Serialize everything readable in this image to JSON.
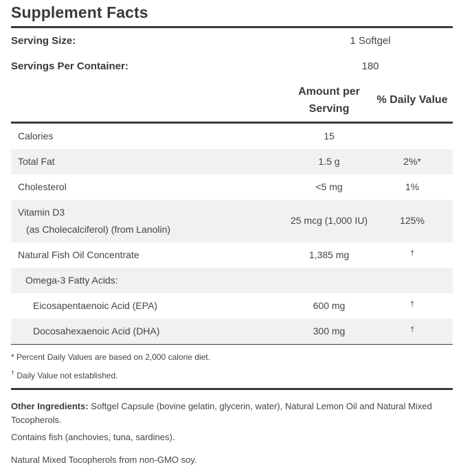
{
  "title": "Supplement Facts",
  "serving": {
    "size_label": "Serving Size:",
    "size_value": "1 Softgel",
    "per_container_label": "Servings Per Container:",
    "per_container_value": "180"
  },
  "columns": {
    "amount_line1": "Amount per",
    "amount_line2": "Serving",
    "daily_value": "% Daily Value"
  },
  "rows": [
    {
      "name": "Calories",
      "amount": "15",
      "dv": ""
    },
    {
      "name": "Total Fat",
      "amount": "1.5 g",
      "dv": "2%*"
    },
    {
      "name": "Cholesterol",
      "amount": "<5 mg",
      "dv": "1%"
    },
    {
      "name": "Vitamin D3",
      "sub": "(as Cholecalciferol) (from Lanolin)",
      "amount": "25 mcg (1,000 IU)",
      "dv": "125%"
    },
    {
      "name": "Natural Fish Oil Concentrate",
      "amount": "1,385 mg",
      "dv": "†"
    },
    {
      "name": "Omega-3 Fatty Acids:",
      "amount": "",
      "dv": ""
    },
    {
      "name": "Eicosapentaenoic Acid (EPA)",
      "amount": "600 mg",
      "dv": "†"
    },
    {
      "name": "Docosahexaenoic Acid (DHA)",
      "amount": "300 mg",
      "dv": "†"
    }
  ],
  "footnotes": {
    "percent_dv": "* Percent Daily Values are based on 2,000 calorie diet.",
    "dagger_mark": "†",
    "dagger_text": " Daily Value not established."
  },
  "ingredients": {
    "label": "Other Ingredients:",
    "text": " Softgel Capsule (bovine gelatin, glycerin, water), Natural Lemon Oil and Natural Mixed Tocopherols.",
    "contains": "Contains fish (anchovies, tuna, sardines).",
    "note": "Natural Mixed Tocopherols from non-GMO soy."
  }
}
